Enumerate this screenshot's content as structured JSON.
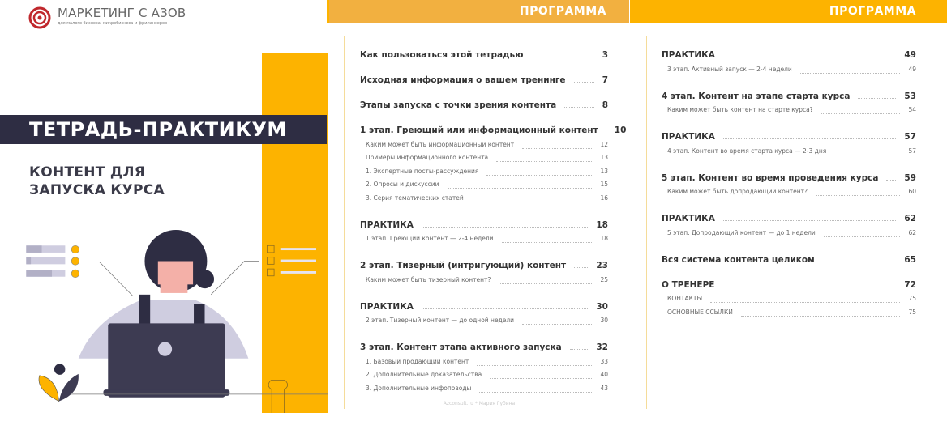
{
  "cover": {
    "logo_name": "МАРКЕТИНГ С АЗОВ",
    "logo_tagline": "для малого бизнеса, микробизнеса и фрилансеров",
    "title": "ТЕТРАДЬ-ПРАКТИКУМ",
    "subtitle_line1": "КОНТЕНТ ДЛЯ",
    "subtitle_line2": "ЗАПУСКА КУРСА",
    "colors": {
      "accent": "#fdb300",
      "dark": "#2e2d43",
      "logo": "#c0282d"
    }
  },
  "page2": {
    "header": "ПРОГРАММА",
    "entries": [
      {
        "type": "main",
        "title": "Как пользоваться этой тетрадью",
        "page": "3"
      },
      {
        "type": "main",
        "title": "Исходная информация о вашем тренинге",
        "page": "7"
      },
      {
        "type": "main",
        "title": "Этапы запуска с точки зрения контента",
        "page": "8"
      },
      {
        "type": "main",
        "title": "1 этап. Греющий или информационный контент",
        "page": "10"
      },
      {
        "type": "sub",
        "title": "Каким может быть информационный контент",
        "page": "12"
      },
      {
        "type": "sub",
        "title": "Примеры информационного контента",
        "page": "13"
      },
      {
        "type": "sub",
        "title": "1. Экспертные посты-рассуждения",
        "page": "13"
      },
      {
        "type": "sub",
        "title": "2. Опросы и дискуссии",
        "page": "15"
      },
      {
        "type": "sub",
        "title": "3. Серия тематических статей",
        "page": "16"
      },
      {
        "type": "main",
        "title": "ПРАКТИКА",
        "page": "18"
      },
      {
        "type": "sub",
        "title": "1 этап. Греющий контент — 2-4 недели",
        "page": "18"
      },
      {
        "type": "main",
        "title": "2 этап. Тизерный (интригующий) контент",
        "page": "23"
      },
      {
        "type": "sub",
        "title": "Каким может быть тизерный контент?",
        "page": "25"
      },
      {
        "type": "main",
        "title": "ПРАКТИКА",
        "page": "30"
      },
      {
        "type": "sub",
        "title": "2 этап. Тизерный контент — до одной недели",
        "page": "30"
      },
      {
        "type": "main",
        "title": "3 этап. Контент этапа активного запуска",
        "page": "32"
      },
      {
        "type": "sub",
        "title": "1. Базовый продающий контент",
        "page": "33"
      },
      {
        "type": "sub",
        "title": "2. Дополнительные доказательства",
        "page": "40"
      },
      {
        "type": "sub",
        "title": "3. Дополнительные инфоповоды",
        "page": "43"
      }
    ],
    "footer": "Azconsult.ru * Мария Губина"
  },
  "page3": {
    "header": "ПРОГРАММА",
    "entries": [
      {
        "type": "main",
        "title": "ПРАКТИКА",
        "page": "49"
      },
      {
        "type": "sub",
        "title": "3 этап. Активный запуск — 2-4 недели",
        "page": "49"
      },
      {
        "type": "main",
        "title": "4 этап. Контент на этапе старта курса",
        "page": "53"
      },
      {
        "type": "sub",
        "title": "Каким может быть контент на старте курса?",
        "page": "54"
      },
      {
        "type": "main",
        "title": "ПРАКТИКА",
        "page": "57"
      },
      {
        "type": "sub",
        "title": "4 этап. Контент во время старта курса — 2-3 дня",
        "page": "57"
      },
      {
        "type": "main",
        "title": "5 этап. Контент во время проведения курса",
        "page": "59"
      },
      {
        "type": "sub",
        "title": "Каким может быть допродающий контент?",
        "page": "60"
      },
      {
        "type": "main",
        "title": "ПРАКТИКА",
        "page": "62"
      },
      {
        "type": "sub",
        "title": "5 этап. Допродающий контент — до 1 недели",
        "page": "62"
      },
      {
        "type": "main",
        "title": "Вся система контента целиком",
        "page": "65"
      },
      {
        "type": "main",
        "title": "О ТРЕНЕРЕ",
        "page": "72"
      },
      {
        "type": "sub",
        "title": "КОНТАКТЫ",
        "page": "75"
      },
      {
        "type": "sub",
        "title": "ОСНОВНЫЕ ССЫЛКИ",
        "page": "75"
      }
    ]
  }
}
